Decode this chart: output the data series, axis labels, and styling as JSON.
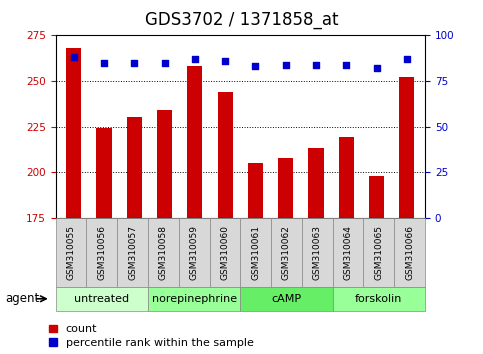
{
  "title": "GDS3702 / 1371858_at",
  "categories": [
    "GSM310055",
    "GSM310056",
    "GSM310057",
    "GSM310058",
    "GSM310059",
    "GSM310060",
    "GSM310061",
    "GSM310062",
    "GSM310063",
    "GSM310064",
    "GSM310065",
    "GSM310066"
  ],
  "bar_values": [
    268,
    224,
    230,
    234,
    258,
    244,
    205,
    208,
    213,
    219,
    198,
    252
  ],
  "percentile_values": [
    88,
    85,
    85,
    85,
    87,
    86,
    83,
    84,
    84,
    84,
    82,
    87
  ],
  "ymin": 175,
  "ymax": 275,
  "yticks": [
    175,
    200,
    225,
    250,
    275
  ],
  "y2min": 0,
  "y2max": 100,
  "y2ticks": [
    0,
    25,
    50,
    75,
    100
  ],
  "bar_color": "#cc0000",
  "dot_color": "#0000cc",
  "group_defs": [
    {
      "label": "untreated",
      "count": 3,
      "color": "#ccffcc"
    },
    {
      "label": "norepinephrine",
      "count": 3,
      "color": "#99ff99"
    },
    {
      "label": "cAMP",
      "count": 3,
      "color": "#66ee66"
    },
    {
      "label": "forskolin",
      "count": 3,
      "color": "#99ff99"
    }
  ],
  "legend_items": [
    {
      "label": "count",
      "color": "#cc0000"
    },
    {
      "label": "percentile rank within the sample",
      "color": "#0000cc"
    }
  ],
  "agent_label": "agent",
  "title_fontsize": 12,
  "tick_fontsize": 7.5,
  "sample_fontsize": 6.5,
  "group_fontsize": 8,
  "legend_fontsize": 8
}
